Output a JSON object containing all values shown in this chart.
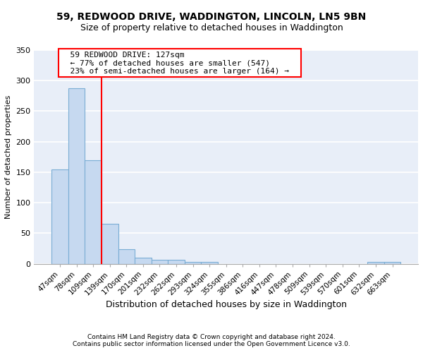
{
  "title": "59, REDWOOD DRIVE, WADDINGTON, LINCOLN, LN5 9BN",
  "subtitle": "Size of property relative to detached houses in Waddington",
  "xlabel": "Distribution of detached houses by size in Waddington",
  "ylabel": "Number of detached properties",
  "bar_labels": [
    "47sqm",
    "78sqm",
    "109sqm",
    "139sqm",
    "170sqm",
    "201sqm",
    "232sqm",
    "262sqm",
    "293sqm",
    "324sqm",
    "355sqm",
    "386sqm",
    "416sqm",
    "447sqm",
    "478sqm",
    "509sqm",
    "539sqm",
    "570sqm",
    "601sqm",
    "632sqm",
    "663sqm"
  ],
  "bar_heights": [
    155,
    287,
    170,
    65,
    24,
    10,
    7,
    6,
    3,
    3,
    0,
    0,
    0,
    0,
    0,
    0,
    0,
    0,
    0,
    3,
    3
  ],
  "bar_color": "#c6d9f0",
  "bar_edge_color": "#7aadd4",
  "ylim": [
    0,
    350
  ],
  "yticks": [
    0,
    50,
    100,
    150,
    200,
    250,
    300,
    350
  ],
  "annotation_text": "  59 REDWOOD DRIVE: 127sqm  \n  ← 77% of detached houses are smaller (547)  \n  23% of semi-detached houses are larger (164) →  ",
  "vline_x_idx": 2.5,
  "background_color": "#e8eef8",
  "grid_color": "#ffffff",
  "footer_line1": "Contains HM Land Registry data © Crown copyright and database right 2024.",
  "footer_line2": "Contains public sector information licensed under the Open Government Licence v3.0.",
  "title_fontsize": 10,
  "subtitle_fontsize": 9,
  "ylabel_fontsize": 8,
  "xlabel_fontsize": 9,
  "tick_fontsize": 7.5,
  "annotation_fontsize": 8,
  "footer_fontsize": 6.5
}
